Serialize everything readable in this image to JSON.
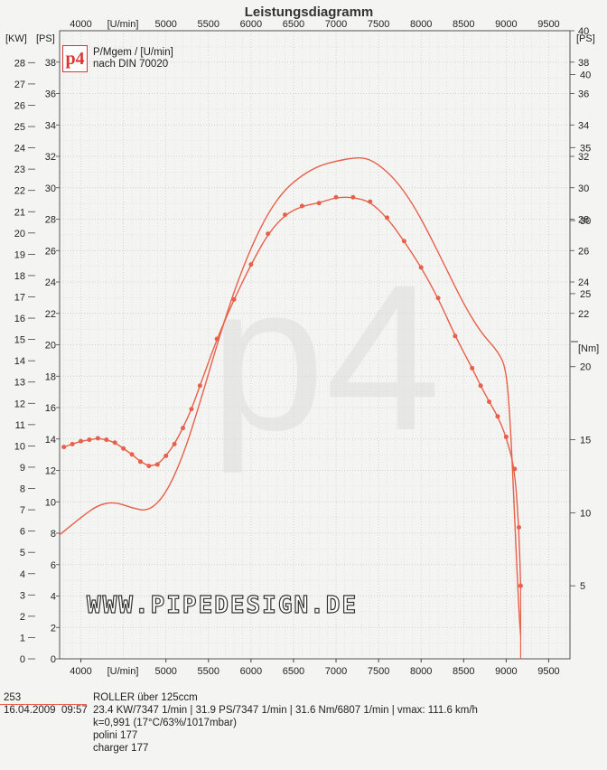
{
  "chart_data": {
    "type": "line",
    "title": "Leistungsdiagramm",
    "x_unit_label": "[U/min]",
    "x_ticks": [
      4000,
      5000,
      5500,
      6000,
      6500,
      7000,
      7500,
      8000,
      8500,
      9000,
      9500
    ],
    "xlim": [
      3750,
      9750
    ],
    "axes": {
      "kw": {
        "label": "[KW]",
        "ticks": [
          0,
          1,
          2,
          3,
          4,
          5,
          6,
          7,
          8,
          9,
          10,
          11,
          12,
          13,
          14,
          15,
          16,
          17,
          18,
          19,
          20,
          21,
          22,
          23,
          24,
          25,
          26,
          27,
          28
        ],
        "range": [
          0,
          29.5
        ]
      },
      "ps": {
        "label": "[PS]",
        "ticks": [
          0,
          2,
          4,
          6,
          8,
          10,
          12,
          14,
          16,
          18,
          20,
          22,
          24,
          26,
          28,
          30,
          32,
          34,
          36,
          38
        ],
        "range": [
          0,
          40
        ]
      },
      "ps_right": {
        "label": "[PS]",
        "ticks": [
          22,
          24,
          26,
          28,
          30,
          32,
          34,
          36,
          38,
          40
        ]
      },
      "nm": {
        "label": "[Nm]",
        "ticks": [
          5,
          10,
          15,
          20,
          25,
          30,
          35,
          40
        ],
        "range": [
          0,
          43
        ]
      }
    },
    "series": [
      {
        "id": "power",
        "axis": "ps",
        "color": "#e8604a",
        "x": [
          3750,
          4000,
          4200,
          4400,
          4600,
          4800,
          5000,
          5200,
          5400,
          5600,
          5800,
          6000,
          6200,
          6400,
          6600,
          6800,
          7000,
          7200,
          7347,
          7500,
          7700,
          7900,
          8100,
          8300,
          8500,
          8700,
          8900,
          9000,
          9050,
          9100,
          9150,
          9170
        ],
        "values": [
          7.9,
          9.0,
          9.8,
          10.0,
          9.6,
          9.4,
          10.5,
          12.9,
          16.3,
          20.0,
          23.4,
          26.2,
          28.4,
          29.9,
          30.8,
          31.4,
          31.7,
          31.9,
          31.9,
          31.5,
          30.5,
          29.0,
          27.0,
          24.8,
          22.6,
          20.8,
          19.6,
          18.5,
          15.0,
          9.0,
          3.0,
          1.5
        ]
      },
      {
        "id": "torque",
        "axis": "nm",
        "color": "#e8604a",
        "markers": true,
        "x": [
          3800,
          3900,
          4000,
          4100,
          4200,
          4300,
          4400,
          4500,
          4600,
          4700,
          4800,
          4900,
          5000,
          5100,
          5200,
          5300,
          5400,
          5600,
          5800,
          6000,
          6200,
          6400,
          6600,
          6800,
          7000,
          7200,
          7400,
          7600,
          7800,
          8000,
          8200,
          8400,
          8600,
          8700,
          8800,
          8900,
          9000,
          9100,
          9150,
          9170
        ],
        "values": [
          14.5,
          14.7,
          14.9,
          15.0,
          15.1,
          15.0,
          14.8,
          14.4,
          14.0,
          13.5,
          13.2,
          13.3,
          13.9,
          14.7,
          15.8,
          17.1,
          18.7,
          21.9,
          24.6,
          27.0,
          29.1,
          30.4,
          31.0,
          31.2,
          31.6,
          31.6,
          31.3,
          30.2,
          28.6,
          26.8,
          24.7,
          22.1,
          19.9,
          18.7,
          17.6,
          16.6,
          15.2,
          13.0,
          9.0,
          5.0
        ]
      }
    ]
  },
  "legend": {
    "logo_text": "p4",
    "line1": "P/Mgem / [U/min]",
    "line2": "nach DIN 70020"
  },
  "background_mark": "p4",
  "watermark": "WWW.PIPEDESIGN.DE",
  "footer": {
    "number": "253",
    "date": "16.04.2009",
    "time": "09:57",
    "vehicle": "ROLLER über 125ccm",
    "results": "23.4 KW/7347 1/min  |  31.9 PS/7347 1/min  |  31.6 Nm/6807 1/min | vmax: 111.6 km/h",
    "correction": "k=0,991 (17°C/63%/1017mbar)",
    "note1": "polini 177",
    "note2": "charger 177"
  },
  "colors": {
    "curve": "#e8604a",
    "grid": "#c8c8c8",
    "background": "#f4f4f2"
  }
}
